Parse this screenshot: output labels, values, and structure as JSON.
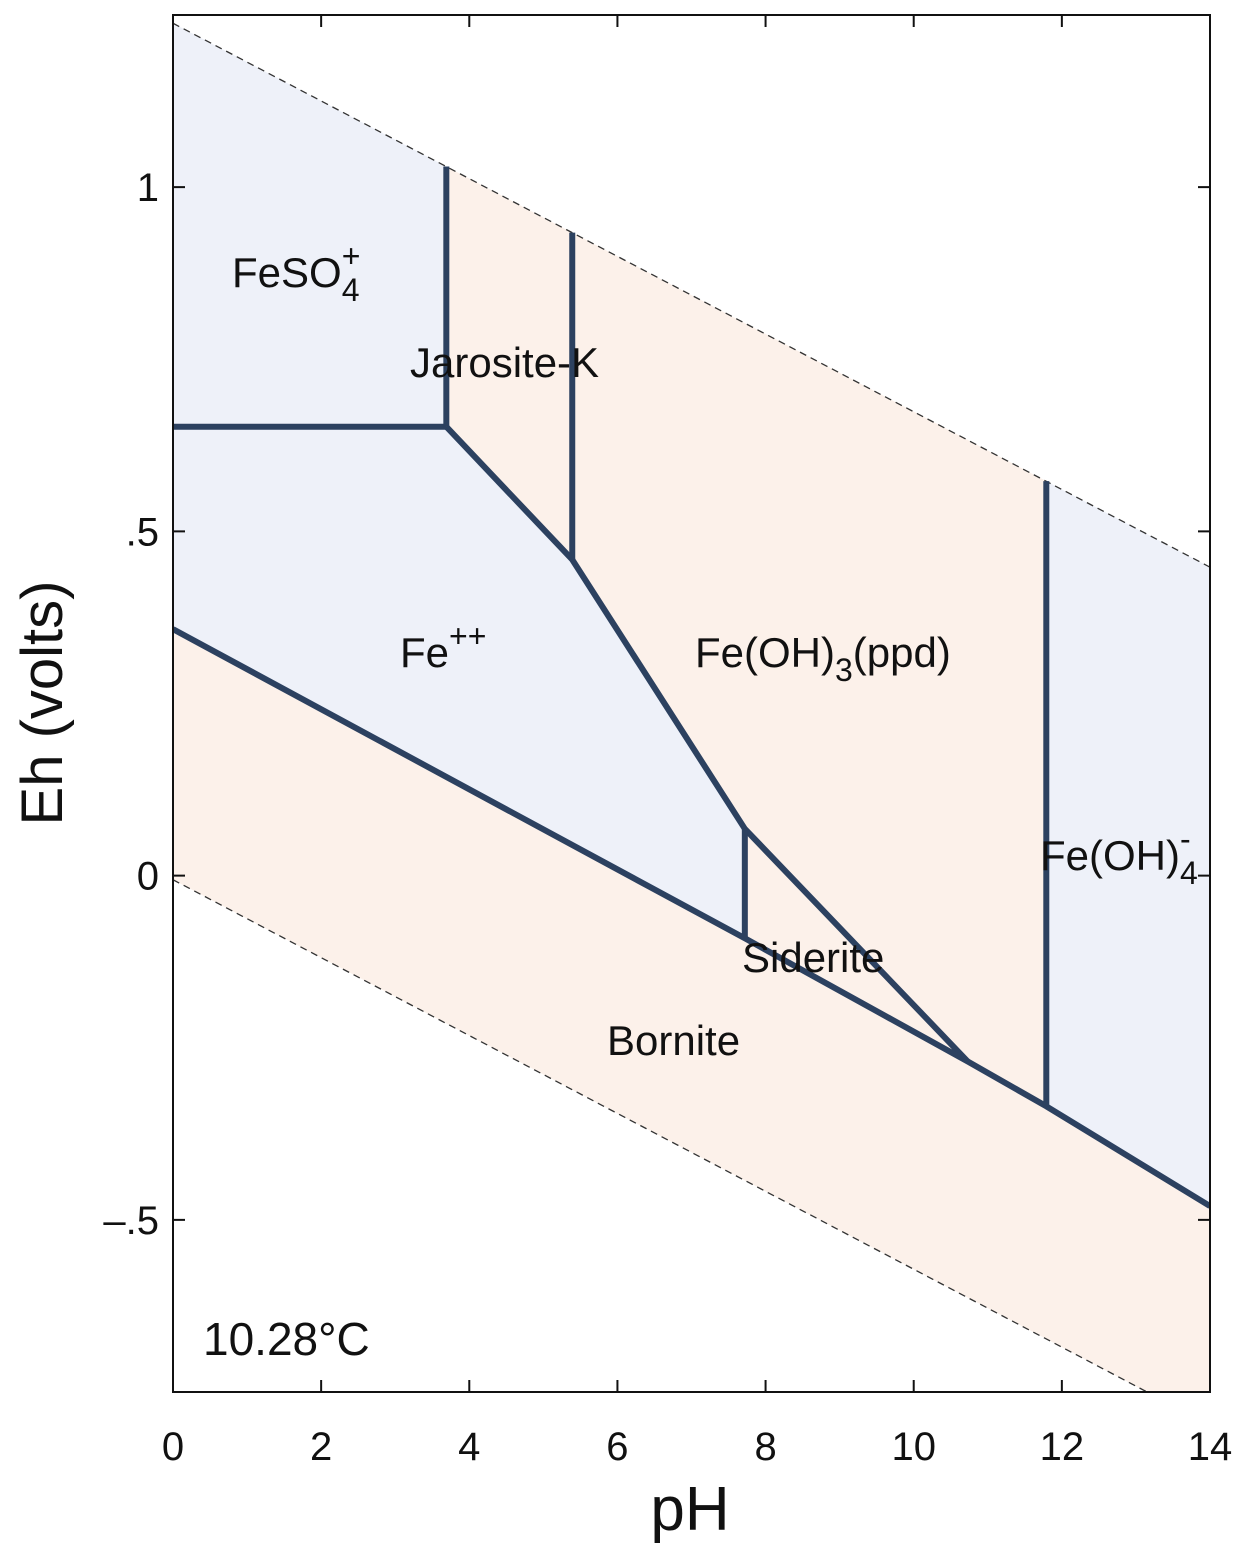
{
  "chart_data": {
    "type": "phase-diagram",
    "x_label": "pH",
    "y_label": "Eh (volts)",
    "annotation": "10.28°C",
    "xlim": [
      0,
      14
    ],
    "ylim": [
      -0.75,
      1.25
    ],
    "xticks": [
      0,
      2,
      4,
      6,
      8,
      10,
      12,
      14
    ],
    "yticks": [
      {
        "value": -0.5,
        "label": "–.5"
      },
      0,
      {
        "value": 0.5,
        "label": ".5"
      },
      1
    ],
    "boundary_color": "#2c4160",
    "water_line_color": "#333333",
    "regions": [
      {
        "label": [
          {
            "text": "FeSO"
          },
          {
            "sub": "4"
          },
          {
            "sup": "+"
          }
        ],
        "color": "#eef1f9",
        "x": [
          0,
          3.69,
          3.69,
          0
        ],
        "y": [
          1.238,
          1.03,
          0.652,
          0.652
        ]
      },
      {
        "label": [
          {
            "text": "Jarosite-K"
          }
        ],
        "color": "#fcf1ea",
        "x": [
          3.69,
          5.39,
          5.39,
          3.69
        ],
        "y": [
          1.03,
          0.934,
          0.459,
          0.652
        ]
      },
      {
        "label": [
          {
            "text": "Fe"
          },
          {
            "sup": "++"
          }
        ],
        "color": "#eef1f9",
        "x": [
          0,
          3.69,
          5.39,
          7.72,
          7.72,
          0
        ],
        "y": [
          0.652,
          0.652,
          0.459,
          0.068,
          -0.091,
          0.358
        ]
      },
      {
        "label": [
          {
            "text": "Fe(OH)"
          },
          {
            "sub": "3"
          },
          {
            "text": "(ppd)"
          }
        ],
        "color": "#fcf1ea",
        "x": [
          5.39,
          11.79,
          11.79,
          10.73,
          7.72,
          5.39
        ],
        "y": [
          0.934,
          0.573,
          -0.335,
          -0.27,
          0.068,
          0.459
        ]
      },
      {
        "label": [
          {
            "text": "Fe(OH)"
          },
          {
            "sub": "4"
          },
          {
            "sup": "-"
          }
        ],
        "color": "#eef1f9",
        "x": [
          11.79,
          14,
          14,
          11.79
        ],
        "y": [
          0.573,
          0.448,
          -0.48,
          -0.335
        ]
      },
      {
        "label": [
          {
            "text": "Siderite"
          }
        ],
        "color": "#fcf1ea",
        "x": [
          7.72,
          10.73,
          7.72
        ],
        "y": [
          0.068,
          -0.27,
          -0.091
        ]
      },
      {
        "label": [
          {
            "text": "Bornite"
          }
        ],
        "color": "#fcf1ea",
        "x": [
          0,
          7.72,
          10.73,
          11.79,
          14,
          14,
          0
        ],
        "y": [
          0.358,
          -0.091,
          -0.27,
          -0.335,
          -0.48,
          -0.798,
          -0.006
        ]
      }
    ],
    "boundaries": [
      {
        "style": "dashed",
        "x": [
          0,
          14
        ],
        "y": [
          1.238,
          0.448
        ]
      },
      {
        "style": "dashed",
        "x": [
          0,
          14
        ],
        "y": [
          -0.006,
          -0.798
        ]
      },
      {
        "style": "solid",
        "x": [
          0,
          3.69
        ],
        "y": [
          0.652,
          0.652
        ]
      },
      {
        "style": "solid",
        "x": [
          3.69,
          3.69
        ],
        "y": [
          0.652,
          1.03
        ]
      },
      {
        "style": "solid",
        "x": [
          3.69,
          5.39,
          7.72,
          10.73
        ],
        "y": [
          0.652,
          0.459,
          0.068,
          -0.27
        ]
      },
      {
        "style": "solid",
        "x": [
          5.39,
          5.39
        ],
        "y": [
          0.459,
          0.934
        ]
      },
      {
        "style": "solid",
        "x": [
          7.72,
          7.72
        ],
        "y": [
          0.068,
          -0.091
        ]
      },
      {
        "style": "solid",
        "x": [
          0,
          7.72,
          10.73,
          11.79,
          14
        ],
        "y": [
          0.358,
          -0.091,
          -0.27,
          -0.335,
          -0.48
        ]
      },
      {
        "style": "solid",
        "x": [
          11.79,
          11.79
        ],
        "y": [
          -0.335,
          0.573
        ]
      }
    ]
  }
}
